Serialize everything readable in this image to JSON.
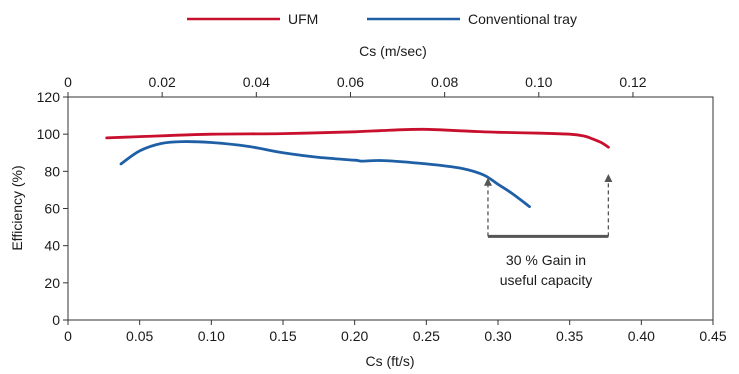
{
  "chart_data": {
    "type": "line",
    "title": "",
    "xlabel": "Cs (ft/s)",
    "x2label": "Cs (m/sec)",
    "ylabel": "Efficiency (%)",
    "xlim": [
      0,
      0.45
    ],
    "x2lim": [
      0,
      0.137
    ],
    "ylim": [
      0,
      120
    ],
    "x_ticks": [
      "0",
      "0.05",
      "0.10",
      "0.15",
      "0.20",
      "0.25",
      "0.30",
      "0.35",
      "0.40",
      "0.45"
    ],
    "x_tick_values": [
      0,
      0.05,
      0.1,
      0.15,
      0.2,
      0.25,
      0.3,
      0.35,
      0.4,
      0.45
    ],
    "x2_ticks": [
      "0",
      "0.02",
      "0.04",
      "0.06",
      "0.08",
      "0.10",
      "0.12"
    ],
    "x2_tick_values": [
      0,
      0.02,
      0.04,
      0.06,
      0.08,
      0.1,
      0.12
    ],
    "y_ticks": [
      "0",
      "20",
      "40",
      "60",
      "80",
      "100",
      "120"
    ],
    "y_tick_values": [
      0,
      20,
      40,
      60,
      80,
      100,
      120
    ],
    "grid": false,
    "legend_position": "top",
    "series": [
      {
        "name": "UFM",
        "color": "#c8102e",
        "x": [
          0.027,
          0.05,
          0.1,
          0.15,
          0.2,
          0.22,
          0.248,
          0.28,
          0.3,
          0.33,
          0.35,
          0.36,
          0.365,
          0.372,
          0.377
        ],
        "y": [
          98,
          98.7,
          100,
          100.3,
          101.3,
          102,
          102.6,
          101.6,
          101,
          100.5,
          100,
          99,
          97.7,
          95.5,
          93
        ]
      },
      {
        "name": "Conventional tray",
        "color": "#1f5fa6",
        "x": [
          0.037,
          0.05,
          0.065,
          0.08,
          0.1,
          0.125,
          0.15,
          0.175,
          0.2,
          0.205,
          0.22,
          0.25,
          0.275,
          0.29,
          0.3,
          0.31,
          0.322
        ],
        "y": [
          84,
          91,
          95,
          96,
          95.5,
          93.5,
          90,
          87.5,
          86,
          85.5,
          85.8,
          84,
          81.5,
          78,
          73,
          68,
          61
        ]
      }
    ],
    "annotations": {
      "gain_label_line1": "30 % Gain in",
      "gain_label_line2": "useful capacity",
      "arrow_from_y": 45,
      "arrow_1": {
        "x": 0.293,
        "to_y": 76
      },
      "arrow_2": {
        "x": 0.377,
        "to_y": 78
      },
      "bracket_y": 45
    }
  }
}
